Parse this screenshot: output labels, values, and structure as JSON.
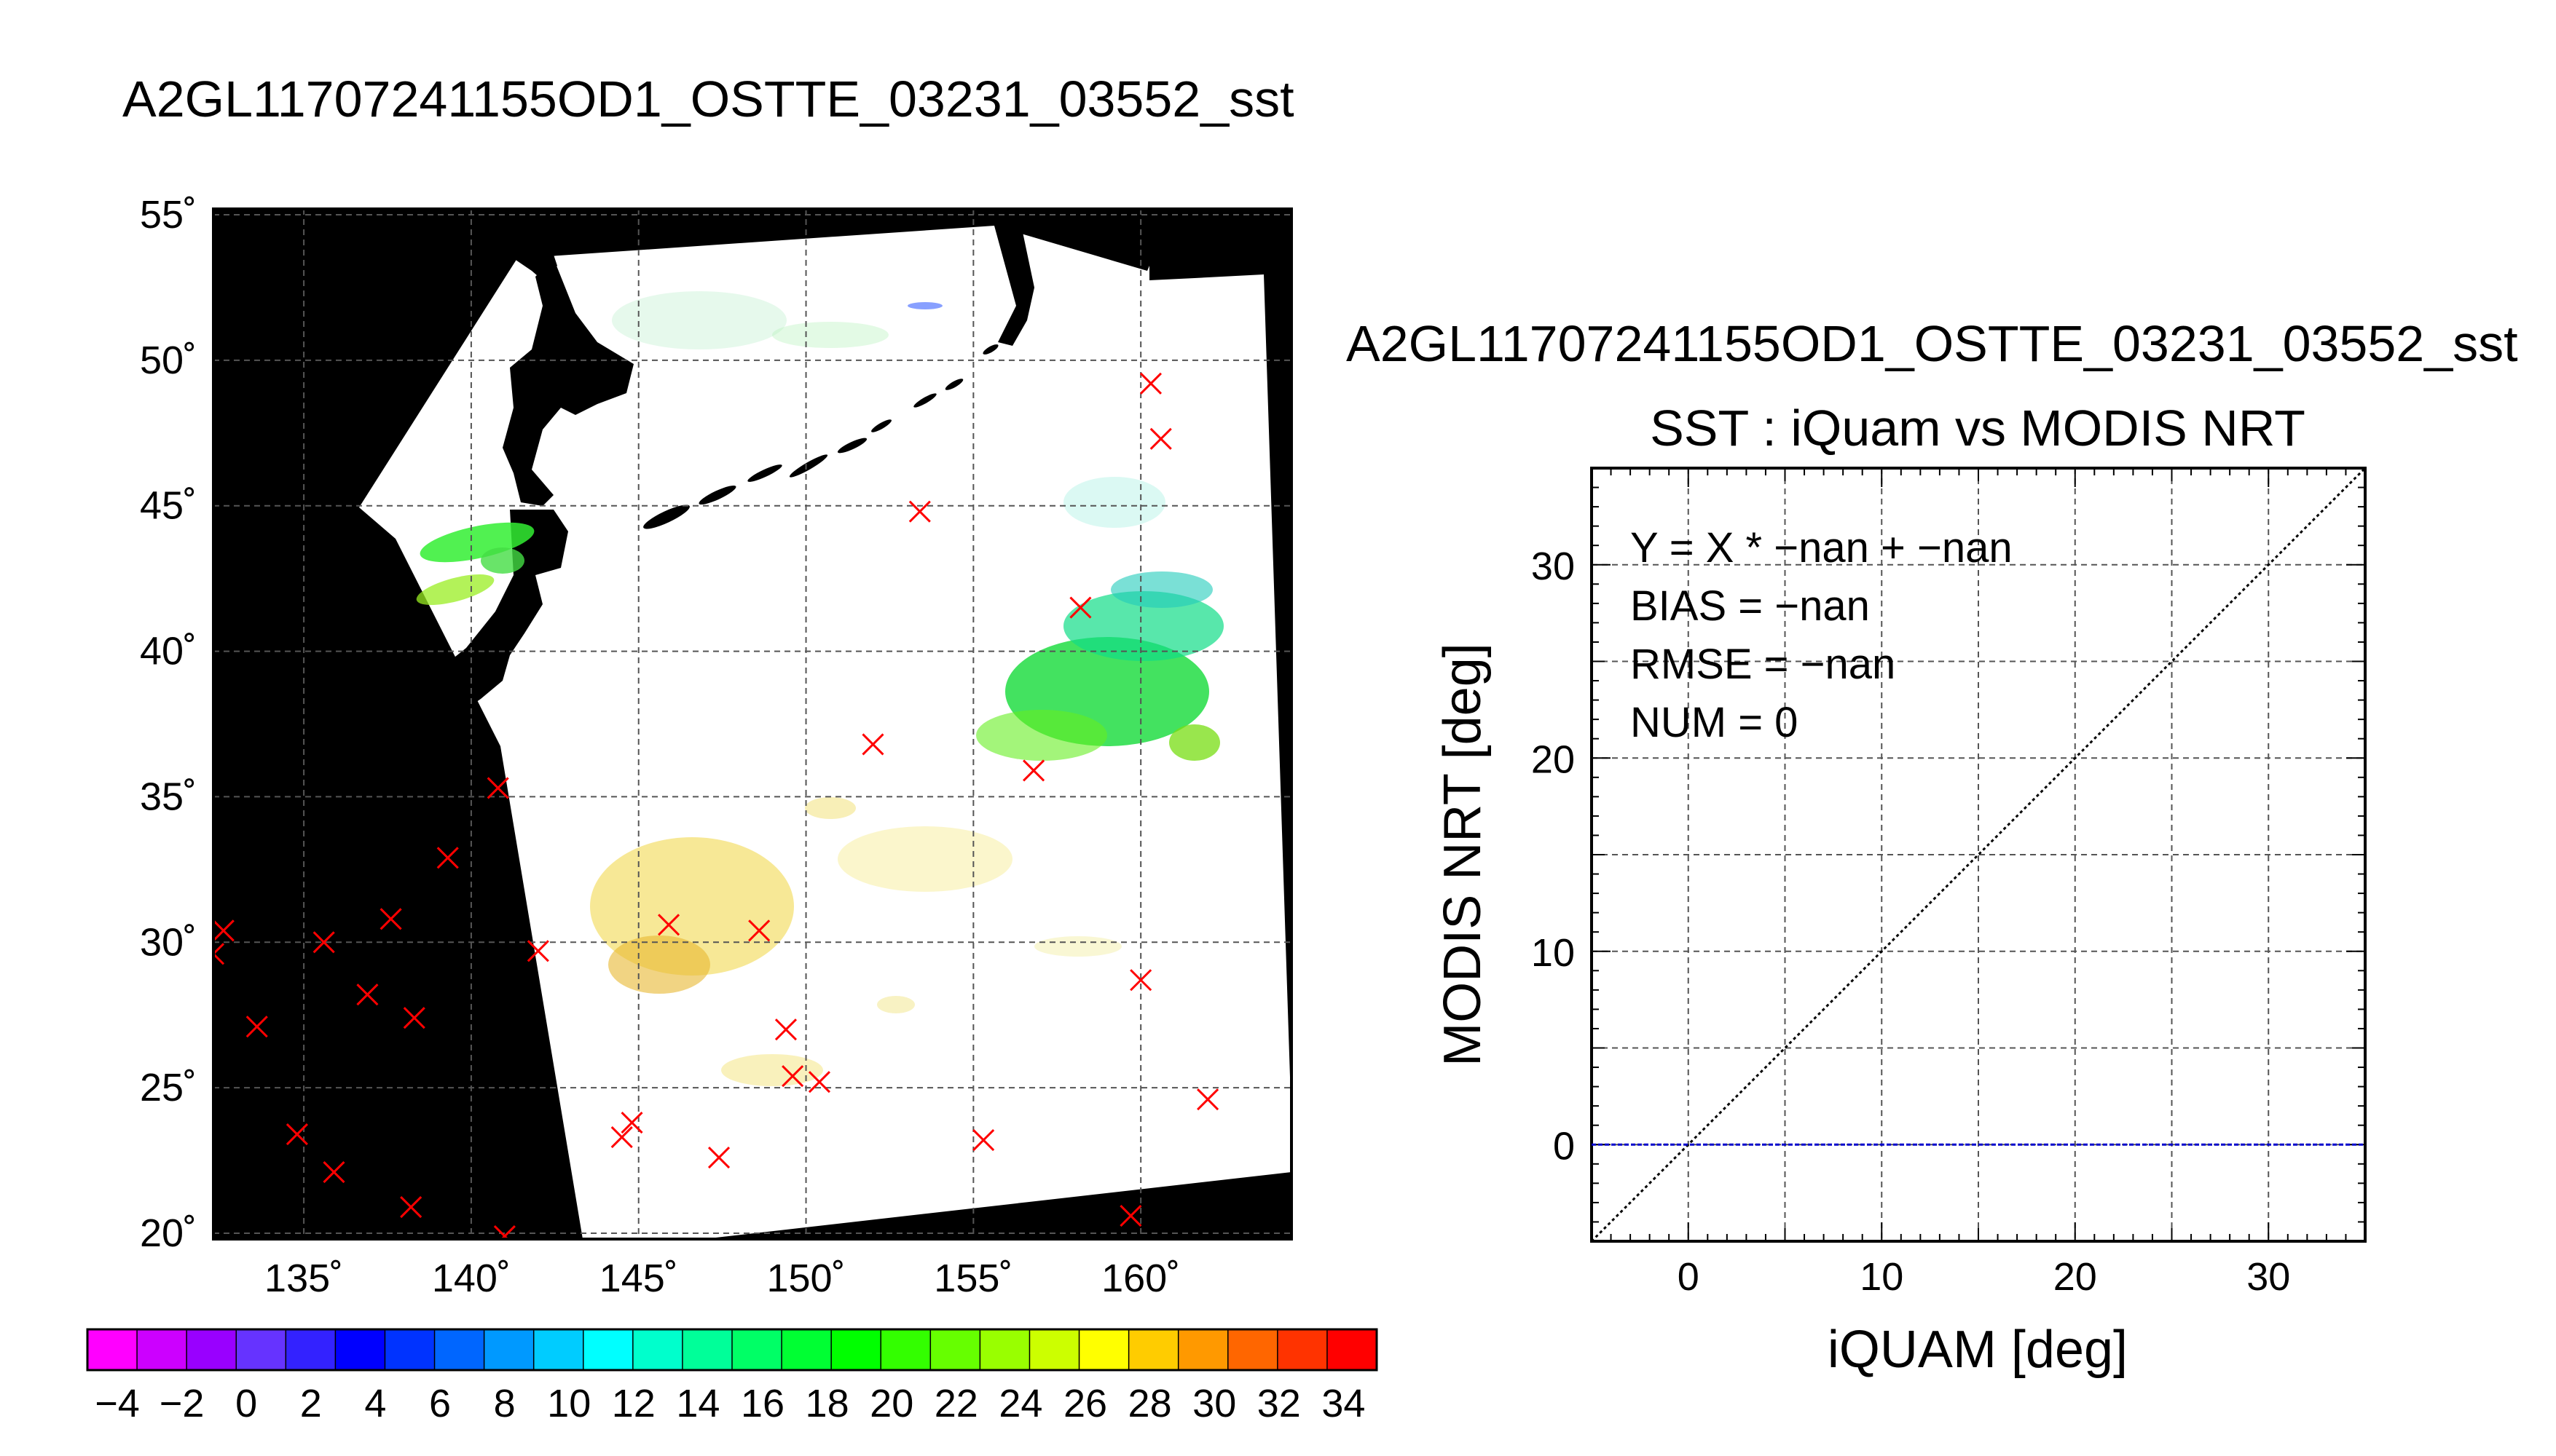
{
  "page": {
    "title": "A2GL11707241155OD1_OSTTE_03231_03552_sst"
  },
  "chart_data": [
    {
      "type": "map",
      "title": "",
      "lon_ticks": [
        "135˚",
        "140˚",
        "145˚",
        "150˚",
        "155˚",
        "160˚"
      ],
      "lat_ticks": [
        "20˚",
        "25˚",
        "30˚",
        "35˚",
        "40˚",
        "45˚",
        "50˚",
        "55˚"
      ],
      "lon_range": [
        132.3,
        164.5
      ],
      "lat_range": [
        19.8,
        55.2
      ],
      "grid": true,
      "background_color": "#000000",
      "matchup_marker_color": "#ff0000",
      "matchup_points": [
        {
          "lon": 132.6,
          "lat": 30.4
        },
        {
          "lon": 132.3,
          "lat": 29.6
        },
        {
          "lon": 133.6,
          "lat": 27.1
        },
        {
          "lon": 134.8,
          "lat": 23.4
        },
        {
          "lon": 135.9,
          "lat": 22.1
        },
        {
          "lon": 135.6,
          "lat": 30.0
        },
        {
          "lon": 136.9,
          "lat": 28.2
        },
        {
          "lon": 137.6,
          "lat": 30.8
        },
        {
          "lon": 138.3,
          "lat": 27.4
        },
        {
          "lon": 138.2,
          "lat": 20.9
        },
        {
          "lon": 139.3,
          "lat": 32.9
        },
        {
          "lon": 140.8,
          "lat": 35.3
        },
        {
          "lon": 141.0,
          "lat": 19.9
        },
        {
          "lon": 142.0,
          "lat": 29.7
        },
        {
          "lon": 144.5,
          "lat": 23.3
        },
        {
          "lon": 144.8,
          "lat": 23.8
        },
        {
          "lon": 145.9,
          "lat": 30.6
        },
        {
          "lon": 147.4,
          "lat": 22.6
        },
        {
          "lon": 148.6,
          "lat": 30.4
        },
        {
          "lon": 149.4,
          "lat": 27.0
        },
        {
          "lon": 149.6,
          "lat": 25.4
        },
        {
          "lon": 150.4,
          "lat": 25.2
        },
        {
          "lon": 152.0,
          "lat": 36.8
        },
        {
          "lon": 153.4,
          "lat": 44.8
        },
        {
          "lon": 155.3,
          "lat": 23.2
        },
        {
          "lon": 156.8,
          "lat": 35.9
        },
        {
          "lon": 158.2,
          "lat": 41.5
        },
        {
          "lon": 159.7,
          "lat": 20.6
        },
        {
          "lon": 160.0,
          "lat": 28.7
        },
        {
          "lon": 160.3,
          "lat": 49.2
        },
        {
          "lon": 160.6,
          "lat": 47.3
        },
        {
          "lon": 162.0,
          "lat": 24.6
        }
      ]
    },
    {
      "type": "scatter",
      "title": "SST : iQuam vs MODIS NRT",
      "xlabel": "iQUAM [deg]",
      "ylabel": "MODIS NRT [deg]",
      "xlim": [
        -5,
        35
      ],
      "ylim": [
        -5,
        35
      ],
      "xticks": [
        "0",
        "10",
        "20",
        "30"
      ],
      "yticks": [
        "0",
        "10",
        "20",
        "30"
      ],
      "grid": true,
      "reference_lines": [
        {
          "kind": "one-to-one",
          "color": "#000000"
        },
        {
          "kind": "horizontal",
          "y": 0,
          "color": "#0000cc"
        }
      ],
      "series": [],
      "stats": [
        "Y = X * −nan + −nan",
        "BIAS = −nan",
        "RMSE = −nan",
        "NUM = 0"
      ]
    }
  ],
  "colorbar": {
    "labels": [
      "−4",
      "−2",
      "0",
      "2",
      "4",
      "6",
      "8",
      "10",
      "12",
      "14",
      "16",
      "18",
      "20",
      "22",
      "24",
      "26",
      "28",
      "30",
      "32",
      "34"
    ],
    "colors": [
      "#ff00ff",
      "#cc00ff",
      "#9900ff",
      "#6633ff",
      "#3322ff",
      "#0000ff",
      "#0033ff",
      "#0066ff",
      "#0099ff",
      "#00ccff",
      "#00ffff",
      "#00ffcc",
      "#00ff99",
      "#00ff66",
      "#00ff33",
      "#00ff00",
      "#33ff00",
      "#66ff00",
      "#99ff00",
      "#ccff00",
      "#ffff00",
      "#ffcc00",
      "#ff9900",
      "#ff6600",
      "#ff3300",
      "#ff0000"
    ]
  }
}
